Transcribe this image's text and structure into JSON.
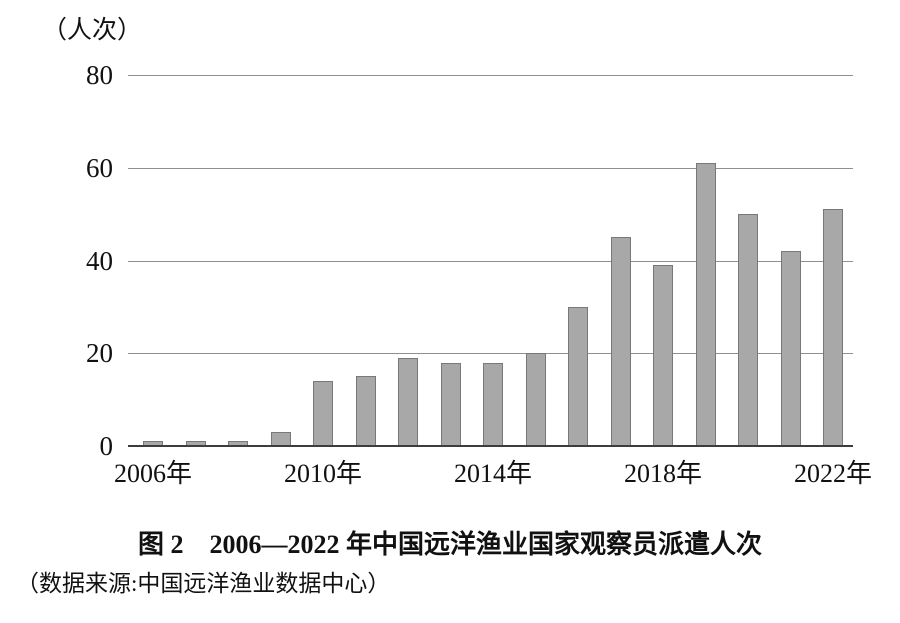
{
  "figure": {
    "caption": "图 2　2006—2022 年中国远洋渔业国家观察员派遣人次",
    "source_note": "（数据来源:中国远洋渔业数据中心）"
  },
  "chart_data": {
    "type": "bar",
    "title": "图 2　2006—2022 年中国远洋渔业国家观察员派遣人次",
    "unit_label": "（人次）",
    "xlabel": "",
    "ylabel": "人次",
    "categories": [
      "2006",
      "2007",
      "2008",
      "2009",
      "2010",
      "2011",
      "2012",
      "2013",
      "2014",
      "2015",
      "2016",
      "2017",
      "2018",
      "2019",
      "2020",
      "2021",
      "2022"
    ],
    "values": [
      1,
      1,
      1,
      3,
      14,
      15,
      19,
      18,
      18,
      20,
      30,
      45,
      39,
      61,
      50,
      42,
      51
    ],
    "x_tick_labels": [
      "2006年",
      "2010年",
      "2014年",
      "2018年",
      "2022年"
    ],
    "x_tick_indices": [
      0,
      4,
      8,
      12,
      16
    ],
    "y_ticks": [
      0,
      20,
      40,
      60,
      80
    ],
    "ylim": [
      0,
      80
    ],
    "grid": true,
    "legend": "none",
    "bar_color": "#a8a8a8",
    "bar_border_color": "#787878",
    "gridline_color": "#8f8f8f",
    "axis_color": "#3d3d3d",
    "source": "（数据来源:中国远洋渔业数据中心）"
  }
}
